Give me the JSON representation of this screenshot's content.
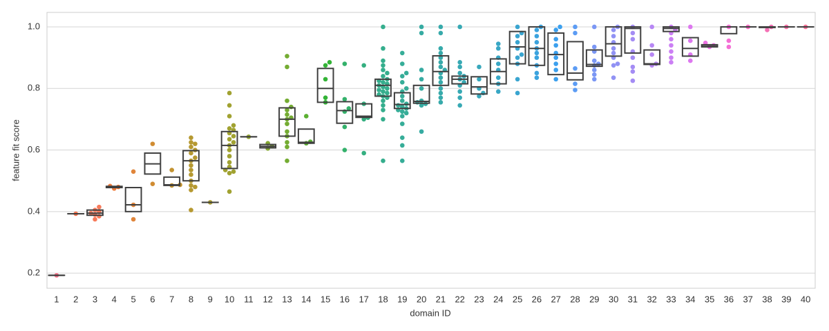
{
  "chart_data": {
    "type": "box",
    "xlabel": "domain ID",
    "ylabel": "feature fit score",
    "ylim": [
      0.151,
      1.047
    ],
    "yticks": [
      0.2,
      0.4,
      0.6,
      0.8,
      {
        "value": 1,
        "label": "1.0"
      }
    ],
    "grid": true,
    "categories": [
      "1",
      "2",
      "3",
      "4",
      "5",
      "6",
      "7",
      "8",
      "9",
      "10",
      "11",
      "12",
      "13",
      "14",
      "15",
      "16",
      "17",
      "18",
      "19",
      "20",
      "21",
      "22",
      "23",
      "24",
      "25",
      "26",
      "27",
      "28",
      "29",
      "30",
      "31",
      "32",
      "33",
      "34",
      "35",
      "36",
      "37",
      "38",
      "39",
      "40"
    ],
    "groups": [
      {
        "color": "#f77189",
        "q1": 0.193,
        "median": 0.193,
        "q3": 0.193,
        "points": [
          0.193
        ]
      },
      {
        "color": "#f7754f",
        "q1": 0.393,
        "median": 0.393,
        "q3": 0.393,
        "points": [
          0.393
        ]
      },
      {
        "color": "#f77a5a",
        "q1": 0.388,
        "median": 0.395,
        "q3": 0.405,
        "points": [
          0.375,
          0.385,
          0.39,
          0.395,
          0.4,
          0.405,
          0.415
        ]
      },
      {
        "color": "#f07c3c",
        "q1": 0.478,
        "median": 0.48,
        "q3": 0.482,
        "points": [
          0.475,
          0.48,
          0.483
        ]
      },
      {
        "color": "#e0853a",
        "q1": 0.4,
        "median": 0.422,
        "q3": 0.478,
        "points": [
          0.375,
          0.422,
          0.53
        ]
      },
      {
        "color": "#d08c32",
        "q1": 0.522,
        "median": 0.555,
        "q3": 0.59,
        "points": [
          0.49,
          0.62
        ]
      },
      {
        "color": "#c39331",
        "q1": 0.485,
        "median": 0.487,
        "q3": 0.512,
        "points": [
          0.485,
          0.487,
          0.535
        ]
      },
      {
        "color": "#b69931",
        "q1": 0.5,
        "median": 0.565,
        "q3": 0.598,
        "points": [
          0.405,
          0.47,
          0.48,
          0.485,
          0.5,
          0.52,
          0.535,
          0.55,
          0.565,
          0.575,
          0.59,
          0.6,
          0.61,
          0.62,
          0.625,
          0.64
        ]
      },
      {
        "color": "#aa9e31",
        "q1": 0.43,
        "median": 0.43,
        "q3": 0.43,
        "points": [
          0.43
        ]
      },
      {
        "color": "#a1a231",
        "q1": 0.54,
        "median": 0.615,
        "q3": 0.66,
        "points": [
          0.465,
          0.525,
          0.53,
          0.535,
          0.545,
          0.56,
          0.58,
          0.6,
          0.615,
          0.625,
          0.635,
          0.645,
          0.655,
          0.665,
          0.67,
          0.68,
          0.71,
          0.745,
          0.785
        ]
      },
      {
        "color": "#93a531",
        "q1": 0.643,
        "median": 0.643,
        "q3": 0.643,
        "points": [
          0.643
        ]
      },
      {
        "color": "#85a932",
        "q1": 0.607,
        "median": 0.612,
        "q3": 0.618,
        "points": [
          0.605,
          0.612,
          0.622
        ]
      },
      {
        "color": "#74ac32",
        "q1": 0.645,
        "median": 0.7,
        "q3": 0.737,
        "points": [
          0.565,
          0.61,
          0.625,
          0.645,
          0.66,
          0.685,
          0.7,
          0.705,
          0.715,
          0.73,
          0.74,
          0.76,
          0.87,
          0.905
        ]
      },
      {
        "color": "#5bb031",
        "q1": 0.622,
        "median": 0.625,
        "q3": 0.668,
        "points": [
          0.622,
          0.627,
          0.71
        ]
      },
      {
        "color": "#33b336",
        "q1": 0.755,
        "median": 0.8,
        "q3": 0.865,
        "points": [
          0.755,
          0.77,
          0.83,
          0.875,
          0.885
        ]
      },
      {
        "color": "#34b16b",
        "q1": 0.687,
        "median": 0.728,
        "q3": 0.757,
        "points": [
          0.6,
          0.675,
          0.725,
          0.735,
          0.765,
          0.88
        ]
      },
      {
        "color": "#35af80",
        "q1": 0.706,
        "median": 0.71,
        "q3": 0.75,
        "points": [
          0.59,
          0.7,
          0.705,
          0.75,
          0.875
        ]
      },
      {
        "color": "#35ae8d",
        "q1": 0.775,
        "median": 0.81,
        "q3": 0.83,
        "points": [
          0.565,
          0.7,
          0.73,
          0.745,
          0.76,
          0.77,
          0.775,
          0.78,
          0.785,
          0.79,
          0.795,
          0.8,
          0.805,
          0.81,
          0.815,
          0.82,
          0.825,
          0.83,
          0.84,
          0.85,
          0.86,
          0.875,
          0.89,
          0.93,
          1.0
        ]
      },
      {
        "color": "#36ad98",
        "q1": 0.735,
        "median": 0.748,
        "q3": 0.786,
        "points": [
          0.565,
          0.615,
          0.64,
          0.685,
          0.71,
          0.72,
          0.725,
          0.73,
          0.735,
          0.74,
          0.745,
          0.75,
          0.76,
          0.775,
          0.79,
          0.8,
          0.82,
          0.84,
          0.85,
          0.88,
          0.915
        ]
      },
      {
        "color": "#36aba2",
        "q1": 0.752,
        "median": 0.758,
        "q3": 0.81,
        "points": [
          0.66,
          0.745,
          0.75,
          0.755,
          0.76,
          0.8,
          0.83,
          0.86,
          0.98,
          1.0
        ]
      },
      {
        "color": "#37aaab",
        "q1": 0.81,
        "median": 0.855,
        "q3": 0.906,
        "points": [
          0.755,
          0.77,
          0.785,
          0.8,
          0.82,
          0.835,
          0.85,
          0.86,
          0.87,
          0.885,
          0.9,
          0.915,
          0.93,
          0.98,
          1.0
        ]
      },
      {
        "color": "#37a9b4",
        "q1": 0.815,
        "median": 0.83,
        "q3": 0.84,
        "points": [
          0.745,
          0.77,
          0.79,
          0.81,
          0.82,
          0.83,
          0.84,
          0.85,
          0.87,
          0.885,
          1.0
        ]
      },
      {
        "color": "#38a8bc",
        "q1": 0.782,
        "median": 0.805,
        "q3": 0.838,
        "points": [
          0.775,
          0.785,
          0.8,
          0.83,
          0.87
        ]
      },
      {
        "color": "#39a7c5",
        "q1": 0.815,
        "median": 0.855,
        "q3": 0.896,
        "points": [
          0.79,
          0.815,
          0.835,
          0.86,
          0.88,
          0.9,
          0.93,
          0.945
        ]
      },
      {
        "color": "#3aa5d0",
        "q1": 0.88,
        "median": 0.935,
        "q3": 0.985,
        "points": [
          0.785,
          0.83,
          0.88,
          0.9,
          0.91,
          0.93,
          0.95,
          0.97,
          0.98,
          1.0
        ]
      },
      {
        "color": "#3ba3de",
        "q1": 0.875,
        "median": 0.93,
        "q3": 1.0,
        "points": [
          0.835,
          0.85,
          0.875,
          0.9,
          0.915,
          0.93,
          0.95,
          0.97,
          0.99,
          1.0
        ]
      },
      {
        "color": "#3ca0ee",
        "q1": 0.845,
        "median": 0.91,
        "q3": 0.98,
        "points": [
          0.83,
          0.86,
          0.88,
          0.9,
          0.915,
          0.94,
          0.96,
          0.99,
          1.0
        ]
      },
      {
        "color": "#5c9cf4",
        "q1": 0.828,
        "median": 0.85,
        "q3": 0.952,
        "points": [
          0.795,
          0.815,
          0.865,
          0.98,
          1.0
        ]
      },
      {
        "color": "#7b97f4",
        "q1": 0.872,
        "median": 0.878,
        "q3": 0.925,
        "points": [
          0.83,
          0.845,
          0.86,
          0.875,
          0.88,
          0.89,
          0.92,
          0.935,
          1.0
        ]
      },
      {
        "color": "#9192f4",
        "q1": 0.905,
        "median": 0.945,
        "q3": 1.0,
        "points": [
          0.835,
          0.875,
          0.88,
          0.9,
          0.915,
          0.93,
          0.95,
          0.97,
          0.99,
          1.0
        ]
      },
      {
        "color": "#a48cf4",
        "q1": 0.915,
        "median": 0.995,
        "q3": 1.0,
        "points": [
          0.825,
          0.855,
          0.87,
          0.9,
          0.92,
          0.96,
          0.98,
          1.0
        ]
      },
      {
        "color": "#b787f4",
        "q1": 0.878,
        "median": 0.88,
        "q3": 0.925,
        "points": [
          0.875,
          0.88,
          0.91,
          0.94,
          1.0
        ]
      },
      {
        "color": "#cb7ff4",
        "q1": 0.985,
        "median": 0.995,
        "q3": 1.0,
        "points": [
          0.885,
          0.9,
          0.92,
          0.94,
          0.96,
          0.98,
          0.99,
          1.0
        ]
      },
      {
        "color": "#dd78ef",
        "q1": 0.905,
        "median": 0.93,
        "q3": 0.965,
        "points": [
          0.89,
          0.91,
          0.955,
          1.0
        ]
      },
      {
        "color": "#ec72e3",
        "q1": 0.935,
        "median": 0.94,
        "q3": 0.942,
        "points": [
          0.935,
          0.94,
          0.948
        ]
      },
      {
        "color": "#f46fd5",
        "q1": 0.978,
        "median": 1.0,
        "q3": 1.0,
        "points": [
          0.935,
          0.955,
          1.0
        ]
      },
      {
        "color": "#f56fc4",
        "q1": 1.0,
        "median": 1.0,
        "q3": 1.0,
        "points": [
          1.0
        ]
      },
      {
        "color": "#f570b5",
        "q1": 0.998,
        "median": 1.0,
        "q3": 1.0,
        "points": [
          0.99,
          1.0
        ]
      },
      {
        "color": "#f571a6",
        "q1": 1.0,
        "median": 1.0,
        "q3": 1.0,
        "points": [
          1.0
        ]
      },
      {
        "color": "#f67198",
        "q1": 1.0,
        "median": 1.0,
        "q3": 1.0,
        "points": [
          1.0
        ]
      }
    ]
  }
}
